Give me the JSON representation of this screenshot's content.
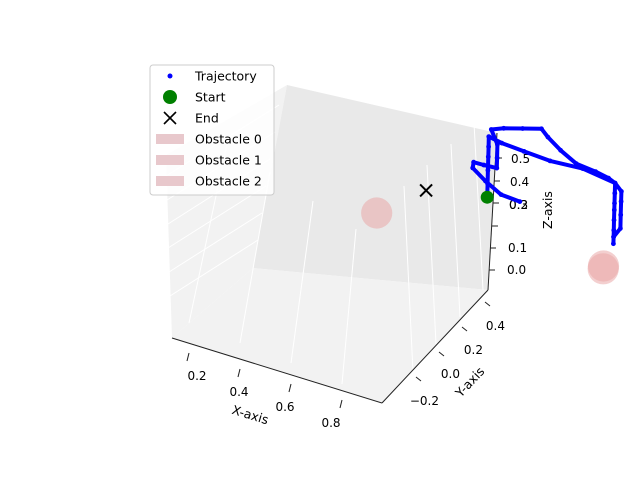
{
  "chart_data": {
    "type": "scatter",
    "projection": "3d",
    "xlabel": "X-axis",
    "ylabel": "Y-axis",
    "zlabel": "Z-axis",
    "xlim": [
      0.12,
      0.92
    ],
    "ylim": [
      -0.32,
      0.5
    ],
    "zlim": [
      -0.1,
      0.58
    ],
    "xticks": [
      0.2,
      0.4,
      0.6,
      0.8
    ],
    "yticks": [
      -0.2,
      0.0,
      0.2,
      0.4
    ],
    "zticks": [
      0.0,
      0.1,
      0.2,
      0.3,
      0.4,
      0.5
    ],
    "xtick_labels": [
      "0.2",
      "0.4",
      "0.6",
      "0.8"
    ],
    "ytick_labels": [
      "−0.2",
      "0.0",
      "0.2",
      "0.4"
    ],
    "ztick_labels": [
      "0.0",
      "0.1",
      "0.2",
      "0.3",
      "0.4",
      "0.5"
    ],
    "grid": true,
    "legend_position": "upper-left",
    "legend": [
      {
        "label": "Trajectory",
        "marker": "dot",
        "color": "#0000ff"
      },
      {
        "label": "Start",
        "marker": "circle",
        "color": "#008000"
      },
      {
        "label": "End",
        "marker": "x",
        "color": "#000000"
      },
      {
        "label": "Obstacle 0",
        "marker": "patch",
        "color": "#e8c8cc"
      },
      {
        "label": "Obstacle 1",
        "marker": "patch",
        "color": "#e8c8cc"
      },
      {
        "label": "Obstacle 2",
        "marker": "patch",
        "color": "#e8c8cc"
      }
    ],
    "trajectory": {
      "name": "Trajectory",
      "color": "#0000ff",
      "points": [
        [
          0.44,
          0.19,
          0.26
        ],
        [
          0.42,
          0.15,
          0.27
        ],
        [
          0.4,
          0.12,
          0.3
        ],
        [
          0.38,
          0.1,
          0.33
        ],
        [
          0.39,
          0.09,
          0.35
        ],
        [
          0.41,
          0.1,
          0.35
        ],
        [
          0.43,
          0.12,
          0.35
        ],
        [
          0.43,
          0.12,
          0.38
        ],
        [
          0.43,
          0.12,
          0.42
        ],
        [
          0.42,
          0.11,
          0.46
        ],
        [
          0.43,
          0.14,
          0.47
        ],
        [
          0.45,
          0.18,
          0.48
        ],
        [
          0.47,
          0.22,
          0.49
        ],
        [
          0.48,
          0.23,
          0.47
        ],
        [
          0.5,
          0.25,
          0.44
        ],
        [
          0.52,
          0.28,
          0.41
        ],
        [
          0.55,
          0.31,
          0.4
        ],
        [
          0.57,
          0.33,
          0.39
        ],
        [
          0.58,
          0.34,
          0.38
        ],
        [
          0.58,
          0.34,
          0.35
        ],
        [
          0.58,
          0.34,
          0.32
        ],
        [
          0.58,
          0.34,
          0.3
        ],
        [
          0.58,
          0.34,
          0.27
        ],
        [
          0.58,
          0.34,
          0.24
        ],
        [
          0.58,
          0.34,
          0.22
        ],
        [
          0.58,
          0.34,
          0.2
        ],
        [
          0.58,
          0.34,
          0.22
        ],
        [
          0.59,
          0.35,
          0.25
        ],
        [
          0.59,
          0.35,
          0.29
        ],
        [
          0.59,
          0.35,
          0.33
        ],
        [
          0.59,
          0.35,
          0.36
        ],
        [
          0.58,
          0.34,
          0.38
        ],
        [
          0.53,
          0.29,
          0.4
        ],
        [
          0.48,
          0.24,
          0.4
        ],
        [
          0.44,
          0.2,
          0.41
        ],
        [
          0.41,
          0.16,
          0.42
        ],
        [
          0.39,
          0.14,
          0.43
        ],
        [
          0.39,
          0.14,
          0.4
        ],
        [
          0.39,
          0.14,
          0.37
        ],
        [
          0.39,
          0.14,
          0.33
        ],
        [
          0.39,
          0.14,
          0.29
        ],
        [
          0.39,
          0.14,
          0.26
        ]
      ]
    },
    "start": {
      "name": "Start",
      "point": [
        0.39,
        0.14,
        0.25
      ],
      "color": "#008000"
    },
    "end": {
      "name": "End",
      "point": [
        0.27,
        0.08,
        0.22
      ],
      "color": "#000000"
    },
    "obstacles": [
      {
        "name": "Obstacle 0",
        "center": [
          0.2,
          0.0,
          0.12
        ],
        "radius": 0.1,
        "color": "#e9a8a8"
      },
      {
        "name": "Obstacle 1",
        "center": [
          0.57,
          0.32,
          0.12
        ],
        "radius": 0.1,
        "color": "#e9a8a8"
      },
      {
        "name": "Obstacle 2",
        "center": [
          0.65,
          0.22,
          0.15
        ],
        "radius": 0.1,
        "color": "#e9a8a8"
      }
    ]
  }
}
